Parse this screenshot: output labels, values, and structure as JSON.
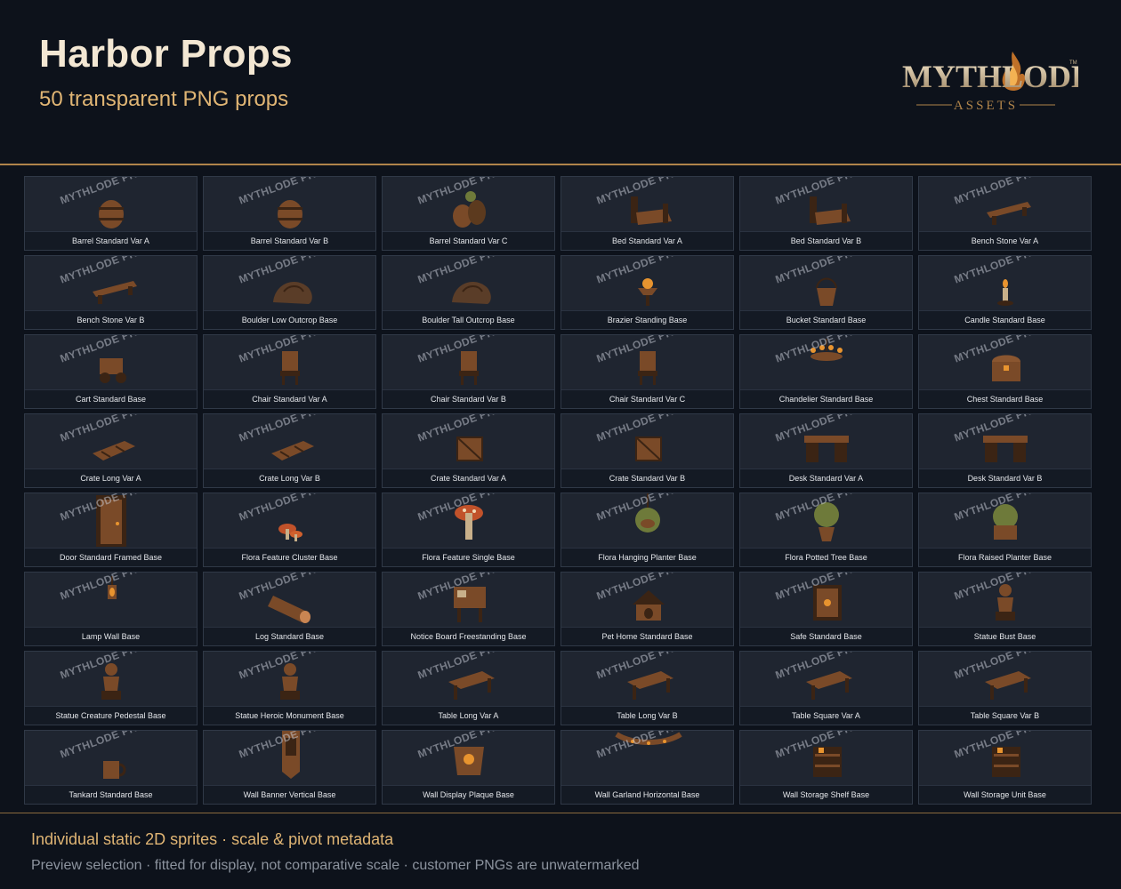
{
  "header": {
    "title": "Harbor Props",
    "subtitle": "50 transparent PNG props",
    "logo_text": "MYTHLODE",
    "logo_sub": "ASSETS",
    "logo_tm": "TM"
  },
  "watermark": "MYTHLODE PREVIEW",
  "props": [
    {
      "label": "Barrel Standard Var A",
      "icon": "barrel-icon"
    },
    {
      "label": "Barrel Standard Var B",
      "icon": "barrel-icon"
    },
    {
      "label": "Barrel Standard Var C",
      "icon": "barrel-stack-icon"
    },
    {
      "label": "Bed Standard Var A",
      "icon": "bed-icon"
    },
    {
      "label": "Bed Standard Var B",
      "icon": "bed-icon"
    },
    {
      "label": "Bench Stone Var A",
      "icon": "bench-icon"
    },
    {
      "label": "Bench Stone Var B",
      "icon": "bench-icon"
    },
    {
      "label": "Boulder Low Outcrop Base",
      "icon": "boulder-icon"
    },
    {
      "label": "Boulder Tall Outcrop Base",
      "icon": "boulder-icon"
    },
    {
      "label": "Brazier Standing Base",
      "icon": "brazier-icon"
    },
    {
      "label": "Bucket Standard Base",
      "icon": "bucket-icon"
    },
    {
      "label": "Candle Standard Base",
      "icon": "candle-icon"
    },
    {
      "label": "Cart Standard Base",
      "icon": "cart-icon"
    },
    {
      "label": "Chair Standard Var A",
      "icon": "chair-icon"
    },
    {
      "label": "Chair Standard Var B",
      "icon": "chair-icon"
    },
    {
      "label": "Chair Standard Var C",
      "icon": "chair-icon"
    },
    {
      "label": "Chandelier Standard Base",
      "icon": "chandelier-icon"
    },
    {
      "label": "Chest Standard Base",
      "icon": "chest-icon"
    },
    {
      "label": "Crate Long Var A",
      "icon": "crate-long-icon"
    },
    {
      "label": "Crate Long Var B",
      "icon": "crate-long-icon"
    },
    {
      "label": "Crate Standard Var A",
      "icon": "crate-icon"
    },
    {
      "label": "Crate Standard Var B",
      "icon": "crate-icon"
    },
    {
      "label": "Desk Standard Var A",
      "icon": "desk-icon"
    },
    {
      "label": "Desk Standard Var B",
      "icon": "desk-icon"
    },
    {
      "label": "Door Standard Framed Base",
      "icon": "door-icon"
    },
    {
      "label": "Flora Feature Cluster Base",
      "icon": "mushroom-cluster-icon"
    },
    {
      "label": "Flora Feature Single Base",
      "icon": "mushroom-icon"
    },
    {
      "label": "Flora Hanging Planter Base",
      "icon": "hanging-planter-icon"
    },
    {
      "label": "Flora Potted Tree Base",
      "icon": "potted-tree-icon"
    },
    {
      "label": "Flora Raised Planter Base",
      "icon": "planter-icon"
    },
    {
      "label": "Lamp Wall Base",
      "icon": "lamp-icon"
    },
    {
      "label": "Log Standard Base",
      "icon": "log-icon"
    },
    {
      "label": "Notice Board Freestanding Base",
      "icon": "notice-board-icon"
    },
    {
      "label": "Pet Home Standard Base",
      "icon": "pet-home-icon"
    },
    {
      "label": "Safe Standard Base",
      "icon": "safe-icon"
    },
    {
      "label": "Statue Bust Base",
      "icon": "statue-icon"
    },
    {
      "label": "Statue Creature Pedestal Base",
      "icon": "statue-icon"
    },
    {
      "label": "Statue Heroic Monument Base",
      "icon": "statue-icon"
    },
    {
      "label": "Table Long Var A",
      "icon": "table-icon"
    },
    {
      "label": "Table Long Var B",
      "icon": "table-icon"
    },
    {
      "label": "Table Square Var A",
      "icon": "table-icon"
    },
    {
      "label": "Table Square Var B",
      "icon": "table-icon"
    },
    {
      "label": "Tankard Standard Base",
      "icon": "tankard-icon"
    },
    {
      "label": "Wall Banner Vertical Base",
      "icon": "banner-icon"
    },
    {
      "label": "Wall Display Plaque Base",
      "icon": "plaque-icon"
    },
    {
      "label": "Wall Garland Horizontal Base",
      "icon": "garland-icon"
    },
    {
      "label": "Wall Storage Shelf Base",
      "icon": "shelf-icon"
    },
    {
      "label": "Wall Storage Unit Base",
      "icon": "shelf-icon"
    }
  ],
  "footer": {
    "main": "Individual static 2D sprites · scale & pivot metadata",
    "sub": "Preview selection · fitted for display, not comparative scale · customer PNGs are unwatermarked"
  },
  "colors": {
    "background": "#0d121b",
    "accent": "#e0b574",
    "tile": "#1f2530",
    "prop_wood": "#7a4a28",
    "prop_dark": "#3b2414",
    "prop_glow": "#e8942f",
    "foliage": "#6e7a3a"
  }
}
